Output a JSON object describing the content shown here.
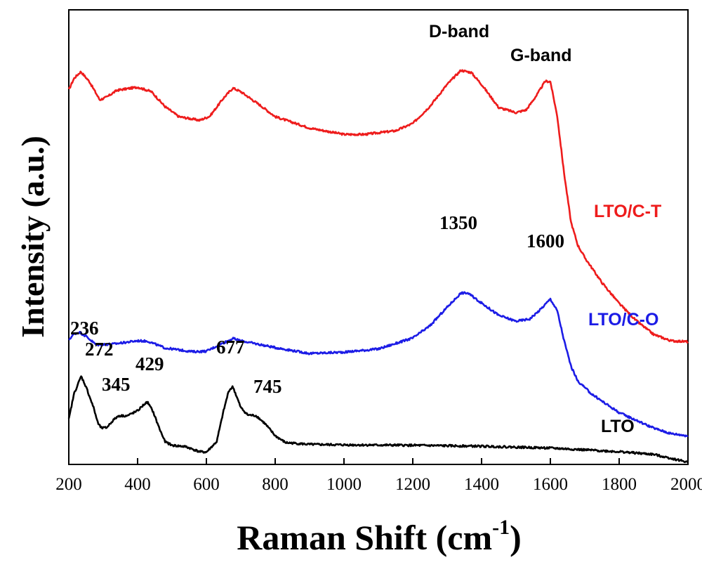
{
  "chart_data": {
    "type": "line",
    "xlabel": "Raman Shift (cm",
    "xlabel_sup": "-1",
    "xlabel_end": ")",
    "ylabel": "Intensity (a.u.)",
    "xlim": [
      200,
      2000
    ],
    "ylim": [
      0,
      100
    ],
    "xticks": [
      {
        "value": 200,
        "label": "200"
      },
      {
        "value": 400,
        "label": "400"
      },
      {
        "value": 600,
        "label": "600"
      },
      {
        "value": 800,
        "label": "800"
      },
      {
        "value": 1000,
        "label": "1000"
      },
      {
        "value": 1200,
        "label": "1200"
      },
      {
        "value": 1400,
        "label": "1400"
      },
      {
        "value": 1600,
        "label": "1600"
      },
      {
        "value": 1800,
        "label": "1800"
      },
      {
        "value": 2000,
        "label": "2000"
      }
    ],
    "series": [
      {
        "name": "LTO/C-T",
        "color": "#ee1c1c",
        "points": [
          [
            200,
            82.4
          ],
          [
            215,
            84.9
          ],
          [
            235,
            86.4
          ],
          [
            260,
            84.2
          ],
          [
            290,
            80.2
          ],
          [
            310,
            80.8
          ],
          [
            340,
            82.3
          ],
          [
            400,
            83.0
          ],
          [
            440,
            82.0
          ],
          [
            480,
            78.7
          ],
          [
            520,
            76.5
          ],
          [
            580,
            75.7
          ],
          [
            610,
            76.6
          ],
          [
            650,
            80.6
          ],
          [
            677,
            82.8
          ],
          [
            700,
            82.0
          ],
          [
            760,
            78.8
          ],
          [
            800,
            76.5
          ],
          [
            900,
            74.0
          ],
          [
            1000,
            72.6
          ],
          [
            1060,
            72.6
          ],
          [
            1150,
            73.4
          ],
          [
            1200,
            75.0
          ],
          [
            1250,
            78.8
          ],
          [
            1300,
            83.6
          ],
          [
            1340,
            86.7
          ],
          [
            1370,
            86.2
          ],
          [
            1400,
            83.6
          ],
          [
            1450,
            78.5
          ],
          [
            1500,
            77.4
          ],
          [
            1530,
            78.0
          ],
          [
            1560,
            81.2
          ],
          [
            1585,
            84.3
          ],
          [
            1600,
            84.2
          ],
          [
            1620,
            76.6
          ],
          [
            1640,
            64.0
          ],
          [
            1660,
            53.3
          ],
          [
            1680,
            48.2
          ],
          [
            1700,
            45.5
          ],
          [
            1750,
            40.0
          ],
          [
            1800,
            35.4
          ],
          [
            1850,
            31.6
          ],
          [
            1900,
            28.6
          ],
          [
            1950,
            27.2
          ],
          [
            2000,
            27.0
          ]
        ]
      },
      {
        "name": "LTO/C-O",
        "color": "#1c1ce6",
        "points": [
          [
            200,
            27.4
          ],
          [
            215,
            28.7
          ],
          [
            230,
            29.1
          ],
          [
            250,
            28.2
          ],
          [
            280,
            26.3
          ],
          [
            330,
            26.5
          ],
          [
            400,
            27.2
          ],
          [
            430,
            27.1
          ],
          [
            480,
            25.6
          ],
          [
            560,
            24.8
          ],
          [
            600,
            24.9
          ],
          [
            640,
            26.4
          ],
          [
            677,
            27.7
          ],
          [
            700,
            27.2
          ],
          [
            800,
            25.7
          ],
          [
            900,
            24.4
          ],
          [
            1000,
            24.7
          ],
          [
            1100,
            25.4
          ],
          [
            1200,
            27.8
          ],
          [
            1250,
            30.5
          ],
          [
            1300,
            34.6
          ],
          [
            1340,
            37.7
          ],
          [
            1360,
            37.7
          ],
          [
            1400,
            35.5
          ],
          [
            1450,
            32.8
          ],
          [
            1500,
            31.5
          ],
          [
            1540,
            32.0
          ],
          [
            1570,
            34.0
          ],
          [
            1600,
            36.4
          ],
          [
            1620,
            33.8
          ],
          [
            1640,
            27.2
          ],
          [
            1660,
            21.6
          ],
          [
            1680,
            18.3
          ],
          [
            1720,
            15.5
          ],
          [
            1760,
            13.4
          ],
          [
            1800,
            11.4
          ],
          [
            1850,
            9.7
          ],
          [
            1900,
            8.0
          ],
          [
            1950,
            6.8
          ],
          [
            2000,
            6.3
          ]
        ]
      },
      {
        "name": "LTO",
        "color": "#000000",
        "points": [
          [
            200,
            9.9
          ],
          [
            215,
            15.5
          ],
          [
            236,
            19.4
          ],
          [
            250,
            17.1
          ],
          [
            272,
            12.5
          ],
          [
            285,
            9.0
          ],
          [
            295,
            8.0
          ],
          [
            310,
            8.1
          ],
          [
            330,
            9.8
          ],
          [
            345,
            10.7
          ],
          [
            370,
            10.7
          ],
          [
            400,
            11.8
          ],
          [
            420,
            13.3
          ],
          [
            429,
            13.7
          ],
          [
            445,
            11.6
          ],
          [
            465,
            7.6
          ],
          [
            480,
            5.0
          ],
          [
            500,
            4.2
          ],
          [
            540,
            3.9
          ],
          [
            580,
            2.8
          ],
          [
            600,
            2.7
          ],
          [
            630,
            5.0
          ],
          [
            650,
            11.8
          ],
          [
            665,
            16.2
          ],
          [
            677,
            17.1
          ],
          [
            700,
            12.5
          ],
          [
            720,
            10.9
          ],
          [
            745,
            10.7
          ],
          [
            770,
            9.0
          ],
          [
            800,
            6.3
          ],
          [
            830,
            4.8
          ],
          [
            900,
            4.4
          ],
          [
            1000,
            4.3
          ],
          [
            1200,
            4.2
          ],
          [
            1400,
            4.0
          ],
          [
            1600,
            3.6
          ],
          [
            1800,
            2.8
          ],
          [
            1900,
            2.2
          ],
          [
            2000,
            0.5
          ]
        ]
      }
    ],
    "annotations": [
      {
        "text": "236",
        "x": 236
      },
      {
        "text": "272",
        "x": 272
      },
      {
        "text": "345",
        "x": 345
      },
      {
        "text": "429",
        "x": 429
      },
      {
        "text": "677",
        "x": 677
      },
      {
        "text": "745",
        "x": 745
      },
      {
        "text": "1350",
        "x": 1350
      },
      {
        "text": "1600",
        "x": 1600
      },
      {
        "text": "D-band",
        "x": 1350
      },
      {
        "text": "G-band",
        "x": 1600
      }
    ],
    "legend": [
      {
        "text": "LTO/C-T",
        "color": "#ee1c1c"
      },
      {
        "text": "LTO/C-O",
        "color": "#1c1ce6"
      },
      {
        "text": "LTO",
        "color": "#000000"
      }
    ],
    "grid": false,
    "legend_placement": "right, next to each curve"
  }
}
